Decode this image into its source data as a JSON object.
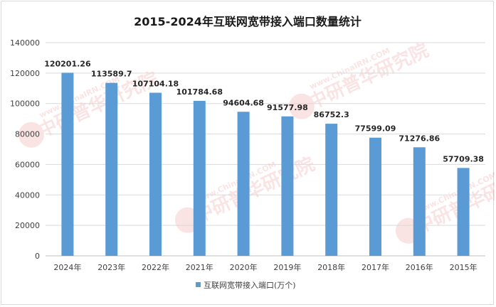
{
  "chart_data": {
    "type": "bar",
    "title": "2015-2024年互联网宽带接入端口数量统计",
    "categories": [
      "2024年",
      "2023年",
      "2022年",
      "2021年",
      "2020年",
      "2019年",
      "2018年",
      "2017年",
      "2016年",
      "2015年"
    ],
    "series": [
      {
        "name": "互联网宽带接入端口(万个)",
        "values": [
          120201.26,
          113589.7,
          107104.18,
          101784.68,
          94604.68,
          91577.98,
          86752.3,
          77599.09,
          71276.86,
          57709.38
        ],
        "labels": [
          "120201.26",
          "113589.7",
          "107104.18",
          "101784.68",
          "94604.68",
          "91577.98",
          "86752.3",
          "77599.09",
          "71276.86",
          "57709.38"
        ]
      }
    ],
    "ylim": [
      0,
      140000
    ],
    "yticks": [
      "0",
      "20000",
      "40000",
      "60000",
      "80000",
      "100000",
      "120000",
      "140000"
    ],
    "xlabel": "",
    "ylabel": "",
    "grid": true,
    "legend_position": "bottom",
    "colors": {
      "bar": "#5b9bd5",
      "grid": "#d9d9d9"
    }
  },
  "watermark": {
    "text": "中研普华研究院",
    "url_text": "www.ChinaIRN.COM",
    "logo_text": "CIRN"
  }
}
